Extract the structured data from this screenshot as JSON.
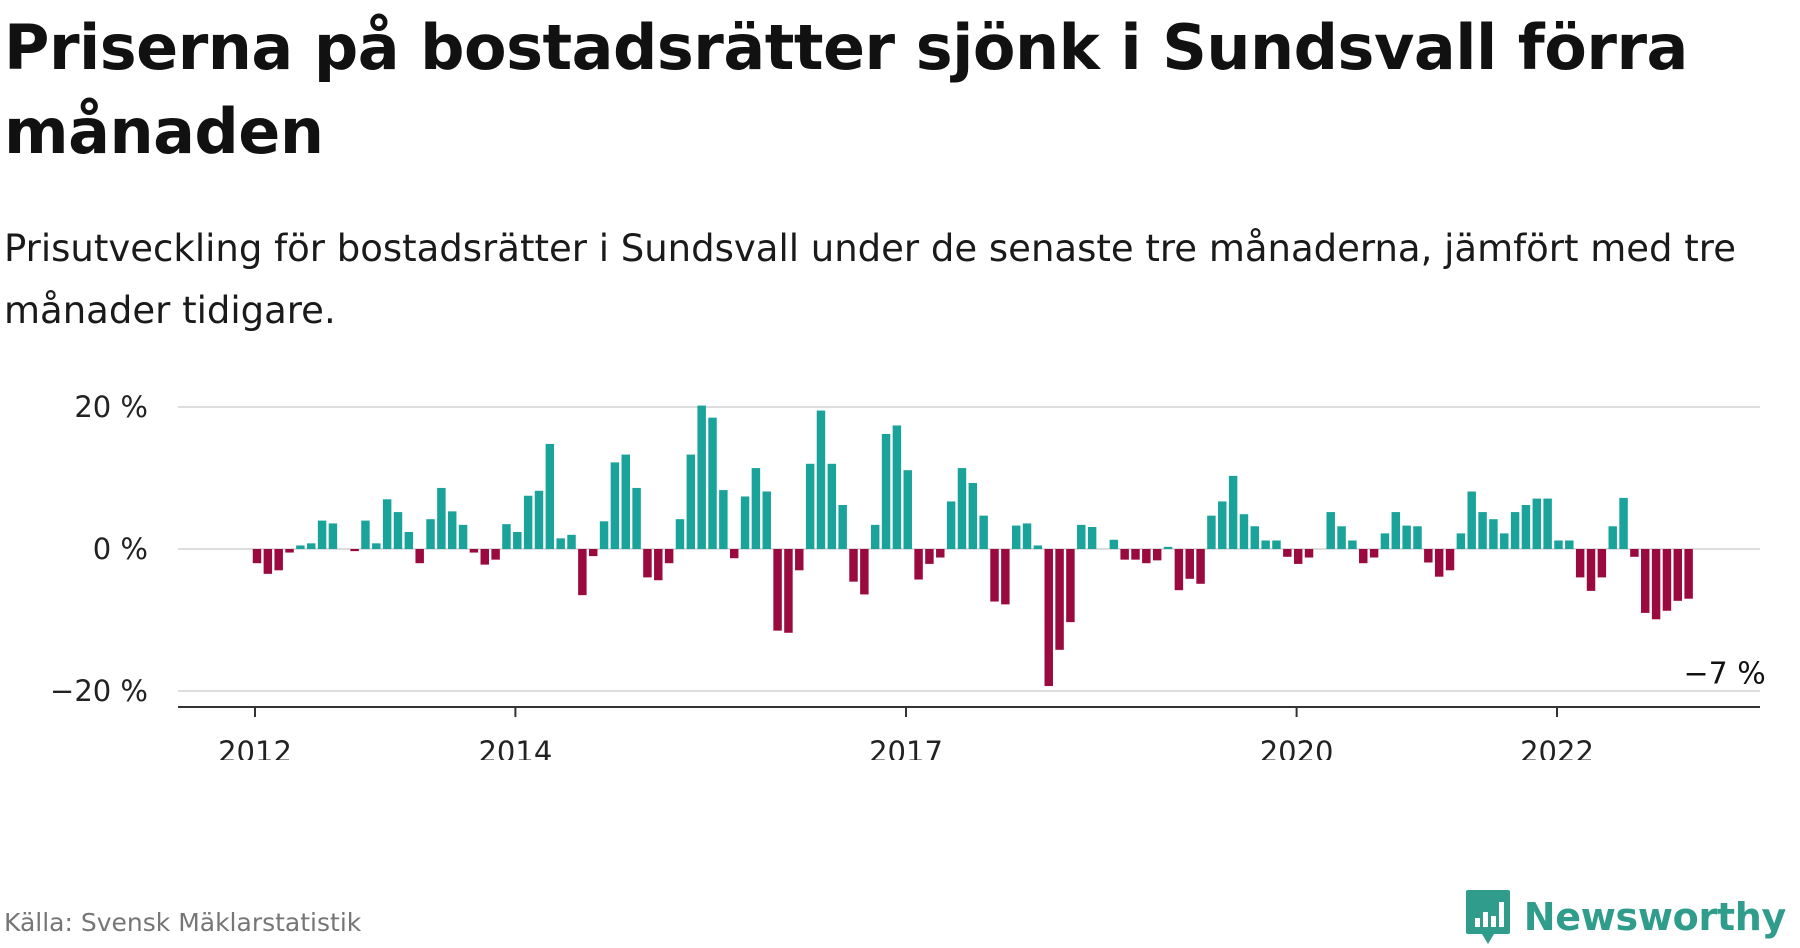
{
  "title": "Priserna på bostadsrätter sjönk i Sundsvall förra månaden",
  "subtitle": "Prisutveckling för bostadsrätter i Sundsvall under de senaste tre månaderna, jämfört med tre månader tidigare.",
  "source": "Källa: Svensk Mäklarstatistik",
  "brand": {
    "name": "Newsworthy",
    "icon": "newsworthy-logo-icon",
    "color": "#2f9c8c"
  },
  "colors": {
    "positive": "#1aa39a",
    "negative": "#9b0a3e",
    "grid": "#dddddd",
    "axis": "#333333"
  },
  "chart_data": {
    "type": "bar",
    "ylim": [
      -22,
      22
    ],
    "yticks": [
      20,
      0,
      -20
    ],
    "ytick_labels": [
      "20 %",
      "0 %",
      "−20 %"
    ],
    "xticks": [
      2012,
      2014,
      2017,
      2020,
      2022
    ],
    "x_start": 2012.0,
    "x_step": 0.0833,
    "values": [
      -2,
      -3.5,
      -3,
      -0.5,
      0.5,
      0.8,
      4,
      3.6,
      0,
      -0.3,
      4,
      0.8,
      7,
      5.2,
      2.4,
      -2,
      4.2,
      8.6,
      5.3,
      3.4,
      -0.5,
      -2.2,
      -1.5,
      3.5,
      2.4,
      7.5,
      8.2,
      14.8,
      1.5,
      2,
      -6.5,
      -1,
      3.9,
      12.2,
      13.3,
      8.6,
      -4,
      -4.4,
      -2,
      4.2,
      13.3,
      20.2,
      18.5,
      8.3,
      -1.3,
      7.4,
      11.4,
      8.1,
      -11.5,
      -11.8,
      -3,
      12,
      19.5,
      12,
      6.2,
      -4.6,
      -6.4,
      3.4,
      16.2,
      17.4,
      11.1,
      -4.3,
      -2.1,
      -1.2,
      6.7,
      11.4,
      9.3,
      4.7,
      -7.4,
      -7.8,
      3.3,
      3.6,
      0.5,
      -19.3,
      -14.2,
      -10.3,
      3.4,
      3.1,
      0,
      1.3,
      -1.5,
      -1.5,
      -2,
      -1.6,
      0.3,
      -5.8,
      -4.2,
      -4.9,
      4.7,
      6.7,
      10.3,
      4.9,
      3.2,
      1.2,
      1.2,
      -1.1,
      -2.1,
      -1.2,
      0,
      5.2,
      3.2,
      1.2,
      -2,
      -1.2,
      2.2,
      5.2,
      3.3,
      3.2,
      -1.9,
      -3.9,
      -3,
      2.2,
      8.1,
      5.2,
      4.2,
      2.2,
      5.2,
      6.2,
      7.1,
      7.1,
      1.2,
      1.2,
      -4,
      -5.9,
      -4,
      3.2,
      7.2,
      -1.1,
      -9,
      -9.9,
      -8.7,
      -7.3,
      -7
    ],
    "last_label": "−7 %"
  }
}
